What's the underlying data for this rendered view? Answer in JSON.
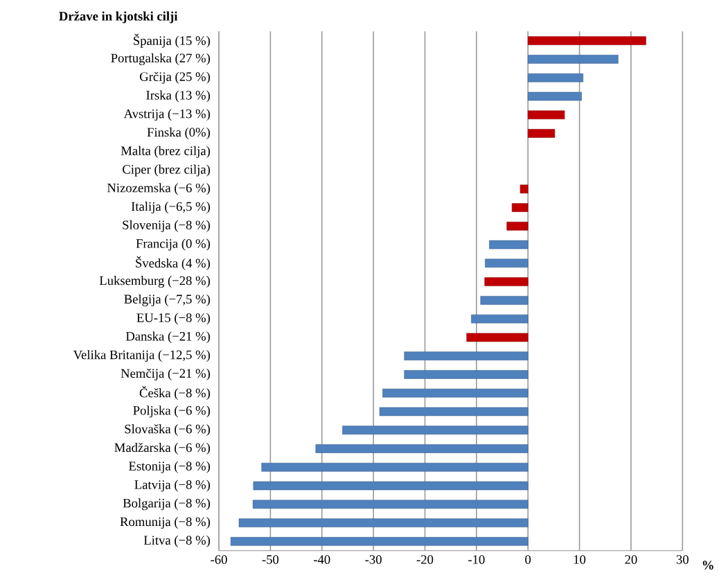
{
  "chart_data": {
    "type": "bar",
    "orientation": "horizontal",
    "title": "Države in kjotski cilji",
    "xlabel": "%",
    "categories": [
      "Španija (15 %)",
      "Portugalska (27 %)",
      "Grčija (25 %)",
      "Irska (13 %)",
      "Avstrija (−13 %)",
      "Finska (0%)",
      "Malta (brez cilja)",
      "Ciper (brez cilja)",
      "Nizozemska (−6 %)",
      "Italija (−6,5 %)",
      "Slovenija (−8 %)",
      "Francija (0 %)",
      "Švedska (4 %)",
      "Luksemburg (−28 %)",
      "Belgija (−7,5 %)",
      "EU-15 (−8 %)",
      "Danska (−21 %)",
      "Velika Britanija (−12,5 %)",
      "Nemčija (−21 %)",
      "Češka (−8 %)",
      "Poljska (−6 %)",
      "Slovaška (−6 %)",
      "Madžarska (−6 %)",
      "Estonija (−8 %)",
      "Latvija (−8 %)",
      "Bolgarija (−8 %)",
      "Romunija (−8 %)",
      "Litva (−8 %)"
    ],
    "values": [
      22.9,
      17.5,
      10.7,
      10.4,
      7.1,
      5.2,
      null,
      null,
      -1.5,
      -3.1,
      -4.1,
      -7.5,
      -8.3,
      -8.4,
      -9.2,
      -11,
      -11.9,
      -24,
      -24,
      -28.2,
      -28.8,
      -36,
      -41.2,
      -51.7,
      -53.3,
      -53.4,
      -56.1,
      -57.7
    ],
    "colors": [
      "#c00000",
      "#4f81bd",
      "#4f81bd",
      "#4f81bd",
      "#c00000",
      "#c00000",
      "#c00000",
      "#c00000",
      "#c00000",
      "#c00000",
      "#c00000",
      "#4f81bd",
      "#4f81bd",
      "#c00000",
      "#4f81bd",
      "#4f81bd",
      "#c00000",
      "#4f81bd",
      "#4f81bd",
      "#4f81bd",
      "#4f81bd",
      "#4f81bd",
      "#4f81bd",
      "#4f81bd",
      "#4f81bd",
      "#4f81bd",
      "#4f81bd",
      "#4f81bd"
    ],
    "xlim": [
      -60,
      30
    ],
    "xticks": [
      -60,
      -50,
      -40,
      -30,
      -20,
      -10,
      0,
      10,
      20,
      30
    ],
    "grid": "x"
  }
}
